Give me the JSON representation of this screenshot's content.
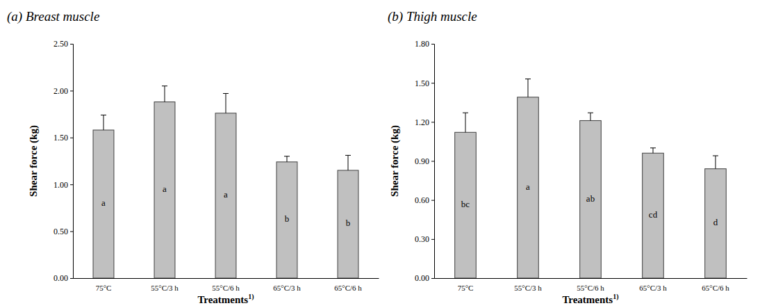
{
  "chart_data": [
    {
      "type": "bar",
      "title": "(a) Breast muscle",
      "xlabel": "Treatments",
      "xlabel_superscript": "1)",
      "ylabel": "Shear force (kg)",
      "categories": [
        "75°C",
        "55°C/3 h",
        "55°C/6 h",
        "65°C/3 h",
        "65°C/6 h"
      ],
      "values": [
        1.58,
        1.88,
        1.76,
        1.24,
        1.15
      ],
      "errors": [
        0.16,
        0.17,
        0.21,
        0.06,
        0.16
      ],
      "significance": [
        "a",
        "a",
        "a",
        "b",
        "b"
      ],
      "color": "#c0c0c0",
      "ylim": [
        0,
        2.5
      ],
      "yticks": [
        {
          "value": 0,
          "label": "0.00"
        },
        {
          "value": 0.5,
          "label": "0.50"
        },
        {
          "value": 1,
          "label": "1.00"
        },
        {
          "value": 1.5,
          "label": "1.50"
        },
        {
          "value": 2,
          "label": "2.00"
        },
        {
          "value": 2.5,
          "label": "2.50"
        }
      ],
      "grid": false
    },
    {
      "type": "bar",
      "title": "(b) Thigh muscle",
      "xlabel": "Treatments",
      "xlabel_superscript": "1)",
      "ylabel": "Shear force (kg)",
      "categories": [
        "75°C",
        "55°C/3 h",
        "55°C/6 h",
        "65°C/3 h",
        "65°C/6 h"
      ],
      "values": [
        1.12,
        1.39,
        1.21,
        0.96,
        0.84
      ],
      "errors": [
        0.15,
        0.14,
        0.06,
        0.04,
        0.1
      ],
      "significance": [
        "bc",
        "a",
        "ab",
        "cd",
        "d"
      ],
      "color": "#c0c0c0",
      "ylim": [
        0,
        1.8
      ],
      "yticks": [
        {
          "value": 0,
          "label": "0.00"
        },
        {
          "value": 0.3,
          "label": "0.30"
        },
        {
          "value": 0.6,
          "label": "0.60"
        },
        {
          "value": 0.9,
          "label": "0.90"
        },
        {
          "value": 1.2,
          "label": "1.20"
        },
        {
          "value": 1.5,
          "label": "1.50"
        },
        {
          "value": 1.8,
          "label": "1.80"
        }
      ],
      "grid": false
    }
  ]
}
